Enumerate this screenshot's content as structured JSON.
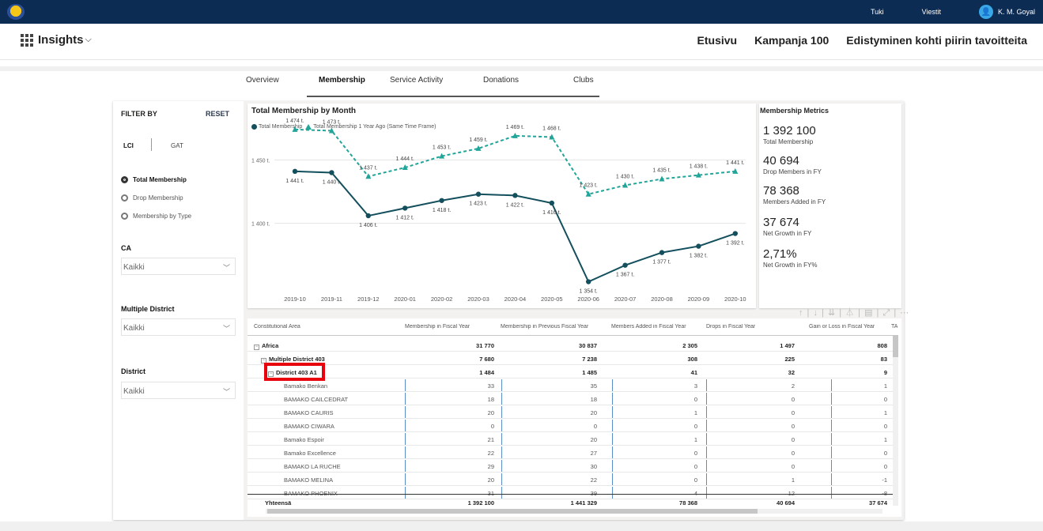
{
  "topbar": {
    "links": [
      "Tuki",
      "Viestit"
    ],
    "user": "K. M. Goyal"
  },
  "app": {
    "name": "Insights",
    "chevron": "⌵",
    "nav": [
      "Etusivu",
      "Kampanja 100",
      "Edistyminen kohti piirin tavoitteita"
    ]
  },
  "tabs": [
    "Overview",
    "Membership",
    "Service Activity",
    "Donations",
    "Clubs"
  ],
  "filter": {
    "title": "FILTER BY",
    "reset": "RESET",
    "toggle": [
      "LCI",
      "GAT"
    ],
    "radios": [
      "Total Membership",
      "Drop Membership",
      "Membership by Type"
    ],
    "ca_label": "CA",
    "ca_value": "Kaikki",
    "md_label": "Multiple District",
    "md_value": "Kaikki",
    "district_label": "District",
    "district_value": "Kaikki"
  },
  "chart": {
    "title": "Total Membership by Month",
    "legend": [
      "Total Membership",
      "Total Membership 1 Year Ago (Same Time Frame)"
    ]
  },
  "chart_data": {
    "type": "line",
    "categories": [
      "2019-10",
      "2019-11",
      "2019-12",
      "2020-01",
      "2020-02",
      "2020-03",
      "2020-04",
      "2020-05",
      "2020-06",
      "2020-07",
      "2020-08",
      "2020-09",
      "2020-10"
    ],
    "series": [
      {
        "name": "Total Membership",
        "values": [
          1441,
          1440,
          1406,
          1412,
          1418,
          1423,
          1422,
          1416,
          1354,
          1367,
          1377,
          1382,
          1392
        ],
        "labels": [
          "1 441 t.",
          "1 440 t.",
          "1 406 t.",
          "1 412 t.",
          "1 418 t.",
          "1 423 t.",
          "1 422 t.",
          "1 416 t.",
          "1 354 t.",
          "1 367 t.",
          "1 377 t.",
          "1 382 t.",
          "1 392 t."
        ],
        "color": "#134f5c"
      },
      {
        "name": "Total Membership 1 Year Ago (Same Time Frame)",
        "values": [
          1474,
          1473,
          1437,
          1444,
          1453,
          1459,
          1469,
          1468,
          1423,
          1430,
          1435,
          1438,
          1441
        ],
        "labels": [
          "1 474 t.",
          "1 473 t.",
          "1 437 t.",
          "1 444 t.",
          "1 453 t.",
          "1 459 t.",
          "1 469 t.",
          "1 468 t.",
          "1 423 t.",
          "1 430 t.",
          "1 435 t.",
          "1 438 t.",
          "1 441 t."
        ],
        "color": "#21a599"
      }
    ],
    "y_ticks": [
      1400,
      1450
    ],
    "y_tick_labels": [
      "1 400 t.",
      "1 450 t."
    ],
    "ylim": [
      1345,
      1482
    ]
  },
  "metrics": {
    "title": "Membership Metrics",
    "items": [
      {
        "value": "1 392 100",
        "label": "Total Membership"
      },
      {
        "value": "40 694",
        "label": "Drop Members in FY"
      },
      {
        "value": "78 368",
        "label": "Members Added in FY"
      },
      {
        "value": "37 674",
        "label": "Net Growth in FY"
      },
      {
        "value": "2,71%",
        "label": "Net Growth in FY%"
      }
    ]
  },
  "table": {
    "headers": [
      "Constitutional Area",
      "Membership in Fiscal Year",
      "Membership in Previous Fiscal Year",
      "Members Added in Fiscal Year",
      "Drops in Fiscal Year",
      "Gain or Loss in Fiscal Year",
      "TA"
    ],
    "rows": [
      {
        "name": "Africa",
        "level": 0,
        "bold": true,
        "values": [
          "31 770",
          "30 837",
          "2 305",
          "1 497",
          "808"
        ]
      },
      {
        "name": "Multiple District 403",
        "level": 1,
        "bold": true,
        "values": [
          "7 680",
          "7 238",
          "308",
          "225",
          "83"
        ]
      },
      {
        "name": "District 403 A1",
        "level": 2,
        "bold": true,
        "values": [
          "1 484",
          "1 485",
          "41",
          "32",
          "9"
        ]
      },
      {
        "name": "Bamako Benkan",
        "level": 3,
        "values": [
          "33",
          "35",
          "3",
          "2",
          "1"
        ]
      },
      {
        "name": "BAMAKO CAILCEDRAT",
        "level": 3,
        "values": [
          "18",
          "18",
          "0",
          "0",
          "0"
        ]
      },
      {
        "name": "BAMAKO CAURIS",
        "level": 3,
        "values": [
          "20",
          "20",
          "1",
          "0",
          "1"
        ]
      },
      {
        "name": "BAMAKO CIWARA",
        "level": 3,
        "values": [
          "0",
          "0",
          "0",
          "0",
          "0"
        ]
      },
      {
        "name": "Bamako Espoir",
        "level": 3,
        "values": [
          "21",
          "20",
          "1",
          "0",
          "1"
        ]
      },
      {
        "name": "Bamako Excellence",
        "level": 3,
        "values": [
          "22",
          "27",
          "0",
          "0",
          "0"
        ]
      },
      {
        "name": "BAMAKO LA RUCHE",
        "level": 3,
        "values": [
          "29",
          "30",
          "0",
          "0",
          "0"
        ]
      },
      {
        "name": "BAMAKO MELINA",
        "level": 3,
        "values": [
          "20",
          "22",
          "0",
          "1",
          "-1"
        ]
      },
      {
        "name": "BAMAKO PHOENIX",
        "level": 3,
        "values": [
          "31",
          "39",
          "4",
          "12",
          "-8"
        ]
      }
    ],
    "total": {
      "name": "Yhteensä",
      "values": [
        "1 392 100",
        "1 441 329",
        "78 368",
        "40 694",
        "37 674"
      ]
    }
  },
  "visual_icons": "↑ | ↓ | ⇊ | ⏃ | ▤ | ⤢ | ⋯"
}
